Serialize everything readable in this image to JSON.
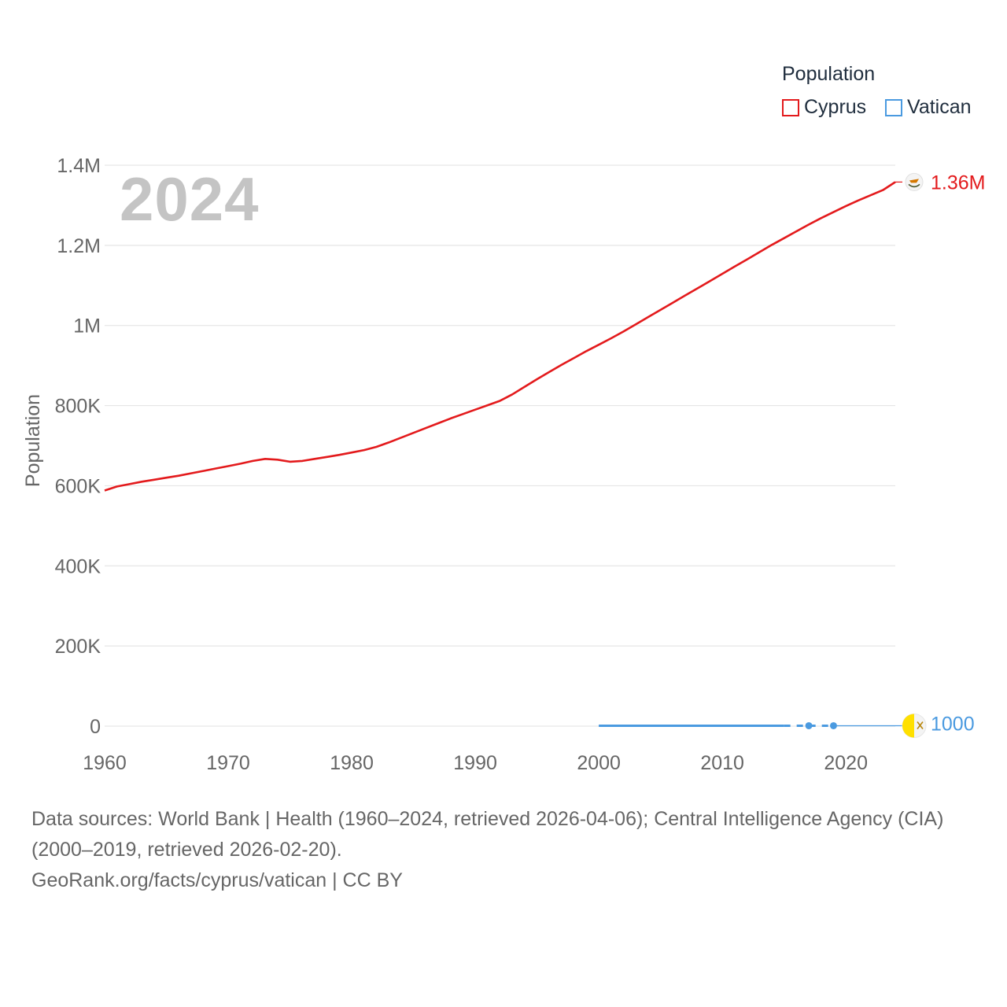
{
  "legend": {
    "title": "Population",
    "items": [
      {
        "label": "Cyprus",
        "color": "#e31a1c"
      },
      {
        "label": "Vatican",
        "color": "#4a9ae0"
      }
    ]
  },
  "year_watermark": "2024",
  "footer": {
    "sources": "Data sources: World Bank | Health (1960–2024, retrieved 2026-04-06); Central Intelligence Agency (CIA) (2000–2019, retrieved 2026-02-20).",
    "credit": "GeoRank.org/facts/cyprus/vatican | CC BY"
  },
  "chart_data": {
    "type": "line",
    "title": "",
    "xlabel": "",
    "ylabel": "Population",
    "xlim": [
      1960,
      2024
    ],
    "ylim": [
      0,
      1400000
    ],
    "x_ticks": [
      "1960",
      "1970",
      "1980",
      "1990",
      "2000",
      "2010",
      "2020"
    ],
    "y_ticks": [
      {
        "value": 0,
        "label": "0"
      },
      {
        "value": 200000,
        "label": "200K"
      },
      {
        "value": 400000,
        "label": "400K"
      },
      {
        "value": 600000,
        "label": "600K"
      },
      {
        "value": 800000,
        "label": "800K"
      },
      {
        "value": 1000000,
        "label": "1M"
      },
      {
        "value": 1200000,
        "label": "1.2M"
      },
      {
        "value": 1400000,
        "label": "1.4M"
      }
    ],
    "grid": true,
    "series": [
      {
        "name": "Cyprus",
        "color": "#e31a1c",
        "end_label": "1.36M",
        "end_icon": "cyprus-flag-icon",
        "points": [
          [
            1960,
            588000
          ],
          [
            1961,
            598000
          ],
          [
            1962,
            604000
          ],
          [
            1963,
            610000
          ],
          [
            1964,
            615000
          ],
          [
            1965,
            620000
          ],
          [
            1966,
            625000
          ],
          [
            1967,
            631000
          ],
          [
            1968,
            637000
          ],
          [
            1969,
            643000
          ],
          [
            1970,
            649000
          ],
          [
            1971,
            655000
          ],
          [
            1972,
            662000
          ],
          [
            1973,
            667000
          ],
          [
            1974,
            665000
          ],
          [
            1975,
            660000
          ],
          [
            1976,
            662000
          ],
          [
            1977,
            667000
          ],
          [
            1978,
            672000
          ],
          [
            1979,
            677000
          ],
          [
            1980,
            683000
          ],
          [
            1981,
            689000
          ],
          [
            1982,
            697000
          ],
          [
            1983,
            708000
          ],
          [
            1984,
            720000
          ],
          [
            1985,
            732000
          ],
          [
            1986,
            744000
          ],
          [
            1987,
            756000
          ],
          [
            1988,
            768000
          ],
          [
            1989,
            779000
          ],
          [
            1990,
            790000
          ],
          [
            1991,
            801000
          ],
          [
            1992,
            812000
          ],
          [
            1993,
            828000
          ],
          [
            1994,
            847000
          ],
          [
            1995,
            866000
          ],
          [
            1996,
            884000
          ],
          [
            1997,
            902000
          ],
          [
            1998,
            919000
          ],
          [
            1999,
            936000
          ],
          [
            2000,
            952000
          ],
          [
            2001,
            968000
          ],
          [
            2002,
            985000
          ],
          [
            2003,
            1003000
          ],
          [
            2004,
            1021000
          ],
          [
            2005,
            1039000
          ],
          [
            2006,
            1057000
          ],
          [
            2007,
            1075000
          ],
          [
            2008,
            1093000
          ],
          [
            2009,
            1111000
          ],
          [
            2010,
            1129000
          ],
          [
            2011,
            1147000
          ],
          [
            2012,
            1165000
          ],
          [
            2013,
            1183000
          ],
          [
            2014,
            1201000
          ],
          [
            2015,
            1218000
          ],
          [
            2016,
            1235000
          ],
          [
            2017,
            1252000
          ],
          [
            2018,
            1268000
          ],
          [
            2019,
            1283000
          ],
          [
            2020,
            1298000
          ],
          [
            2021,
            1312000
          ],
          [
            2022,
            1325000
          ],
          [
            2023,
            1338000
          ],
          [
            2024,
            1358000
          ]
        ]
      },
      {
        "name": "Vatican",
        "color": "#4a9ae0",
        "end_label": "1000",
        "end_icon": "vatican-flag-icon",
        "points": [
          [
            2000,
            1000
          ],
          [
            2001,
            1000
          ],
          [
            2002,
            1000
          ],
          [
            2003,
            1000
          ],
          [
            2004,
            1000
          ],
          [
            2005,
            1000
          ],
          [
            2006,
            1000
          ],
          [
            2007,
            1000
          ],
          [
            2008,
            1000
          ],
          [
            2009,
            1000
          ],
          [
            2010,
            1000
          ],
          [
            2011,
            1000
          ],
          [
            2012,
            1000
          ],
          [
            2013,
            1000
          ],
          [
            2014,
            1000
          ],
          [
            2015,
            1000
          ],
          [
            2017,
            1000
          ],
          [
            2019,
            1000
          ]
        ],
        "markers": [
          2017,
          2019
        ]
      }
    ]
  }
}
